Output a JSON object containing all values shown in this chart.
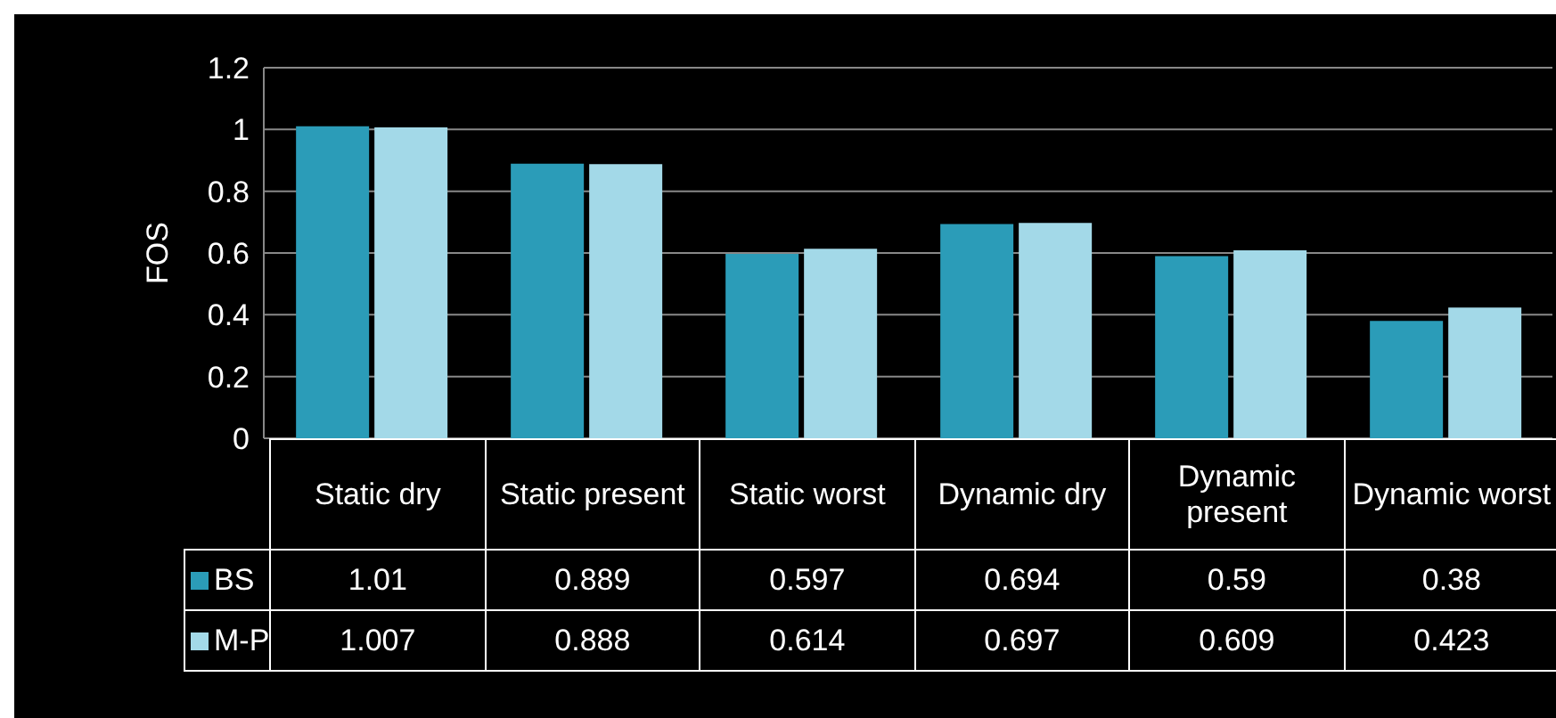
{
  "chart_data": {
    "type": "bar",
    "ylabel": "FOS",
    "categories": [
      "Static dry",
      "Static present",
      "Static worst",
      "Dynamic dry",
      "Dynamic present",
      "Dynamic worst"
    ],
    "series": [
      {
        "name": "BS",
        "color": "#2b9cb8",
        "values": [
          1.01,
          0.889,
          0.597,
          0.694,
          0.59,
          0.38
        ]
      },
      {
        "name": "M-P",
        "color": "#a3d9e8",
        "values": [
          1.007,
          0.888,
          0.614,
          0.697,
          0.609,
          0.423
        ]
      }
    ],
    "ylim": [
      0,
      1.2
    ],
    "yticks": [
      0,
      0.2,
      0.4,
      0.6,
      0.8,
      1,
      1.2
    ],
    "grid": "y",
    "legend": "bottom left",
    "data_labels": true
  }
}
